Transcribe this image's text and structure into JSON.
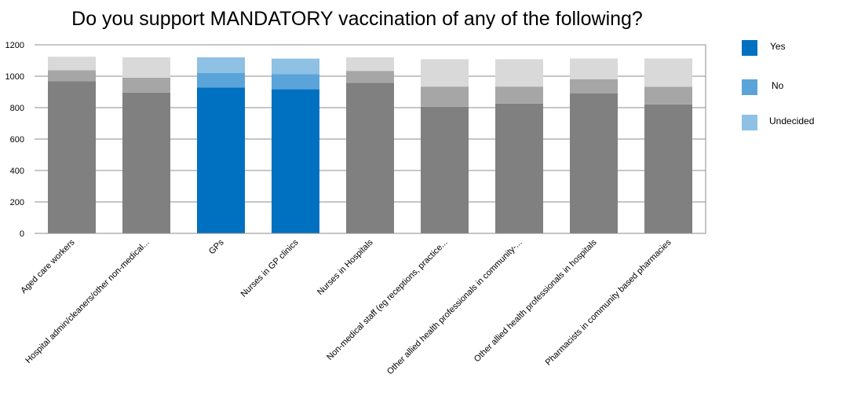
{
  "chart_data": {
    "type": "bar",
    "stacked": true,
    "title": "Do you support MANDATORY vaccination of any of the following?",
    "xlabel": "",
    "ylabel": "",
    "ylim": [
      0,
      1200
    ],
    "yticks": [
      0,
      200,
      400,
      600,
      800,
      1000,
      1200
    ],
    "grid": true,
    "legend_position": "right",
    "highlighted_categories": [
      "GPs",
      "Nurses in GP clinics"
    ],
    "categories": [
      "Aged care workers",
      "Hospital admin/cleaners/other non-medical...",
      "GPs",
      "Nurses in GP clinics",
      "Nurses in Hospitals",
      "Non-medical staff (eg receptions, practice...",
      "Other allied health professionals in community-...",
      "Other allied health professionals in hospitals",
      "Pharmacists in community based pharmacies"
    ],
    "series": [
      {
        "name": "Yes",
        "color": "#0070C0",
        "muted_color": "#808080",
        "values": [
          968,
          896,
          928,
          917,
          958,
          806,
          826,
          890,
          821
        ]
      },
      {
        "name": "No",
        "color": "#5BA4D9",
        "muted_color": "#A6A6A6",
        "values": [
          70,
          94,
          92,
          97,
          76,
          128,
          108,
          90,
          112
        ]
      },
      {
        "name": "Undecided",
        "color": "#8EC1E3",
        "muted_color": "#D9D9D9",
        "values": [
          86,
          130,
          100,
          98,
          86,
          174,
          174,
          133,
          180
        ]
      }
    ]
  }
}
